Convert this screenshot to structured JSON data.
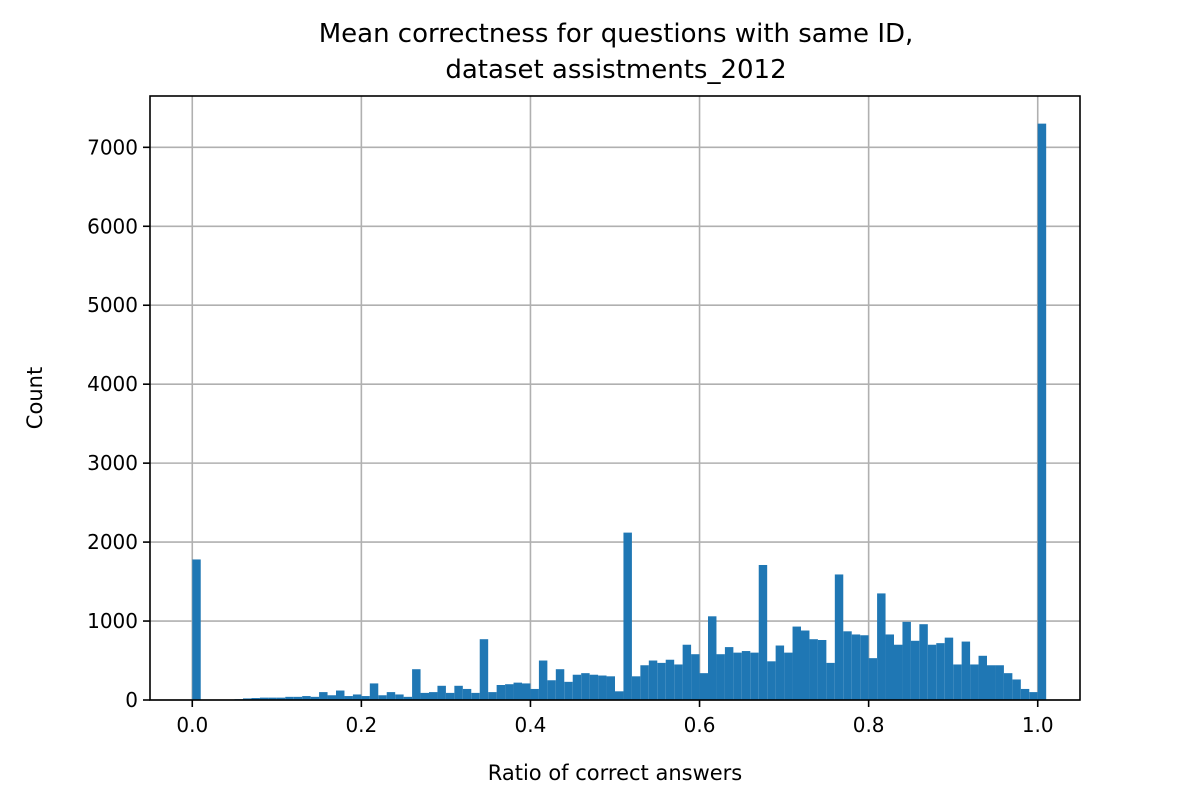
{
  "chart_data": {
    "type": "bar",
    "title": "Mean correctness for questions with same ID,\ndataset assistments_2012",
    "title_lines": [
      "Mean correctness for questions with same ID,",
      "dataset assistments_2012"
    ],
    "xlabel": "Ratio of correct answers",
    "ylabel": "Count",
    "xlim": [
      -0.05,
      1.05
    ],
    "ylim": [
      0,
      7650
    ],
    "xticks": [
      0.0,
      0.2,
      0.4,
      0.6,
      0.8,
      1.0
    ],
    "xtick_labels": [
      "0.0",
      "0.2",
      "0.4",
      "0.6",
      "0.8",
      "1.0"
    ],
    "yticks": [
      0,
      1000,
      2000,
      3000,
      4000,
      5000,
      6000,
      7000
    ],
    "ytick_labels": [
      "0",
      "1000",
      "2000",
      "3000",
      "4000",
      "5000",
      "6000",
      "7000"
    ],
    "grid": true,
    "bar_color": "#1f77b4",
    "bin_start": 0.0,
    "bin_width": 0.01,
    "values": [
      1780,
      0,
      0,
      0,
      0,
      10,
      20,
      25,
      30,
      30,
      30,
      40,
      40,
      50,
      40,
      100,
      60,
      120,
      50,
      70,
      50,
      210,
      60,
      100,
      70,
      40,
      390,
      90,
      100,
      180,
      90,
      180,
      140,
      90,
      770,
      100,
      190,
      200,
      220,
      210,
      140,
      500,
      250,
      390,
      230,
      320,
      340,
      320,
      310,
      300,
      110,
      2120,
      300,
      440,
      500,
      470,
      510,
      450,
      700,
      580,
      340,
      1060,
      580,
      670,
      600,
      620,
      600,
      1710,
      490,
      690,
      600,
      930,
      880,
      770,
      760,
      470,
      1590,
      870,
      830,
      820,
      530,
      1350,
      830,
      700,
      990,
      750,
      960,
      700,
      720,
      790,
      450,
      740,
      450,
      560,
      440,
      440,
      340,
      260,
      140,
      100,
      7300
    ]
  }
}
